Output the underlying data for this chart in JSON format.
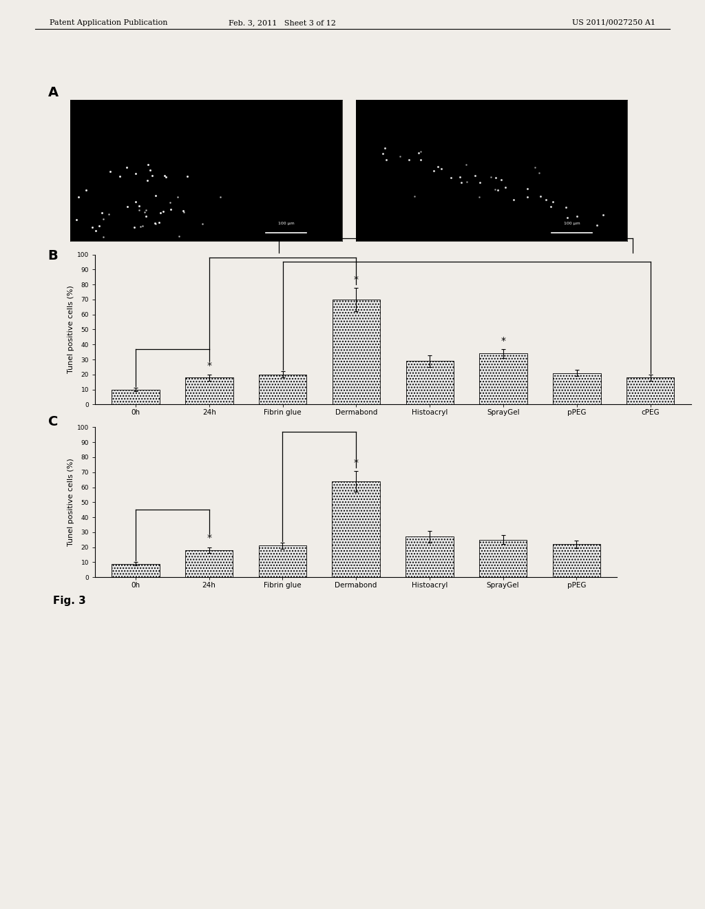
{
  "panel_b": {
    "categories": [
      "0h",
      "24h",
      "Fibrin glue",
      "Dermabond",
      "Histoacryl",
      "SprayGel",
      "pPEG",
      "cPEG"
    ],
    "values": [
      10,
      18,
      20,
      70,
      29,
      34,
      21,
      18
    ],
    "errors": [
      1.0,
      2.0,
      2.0,
      8.0,
      4.0,
      3.0,
      2.0,
      2.0
    ],
    "ylabel": "Tunel positive cells (%)",
    "ylim": [
      0,
      100
    ],
    "yticks": [
      0,
      10,
      20,
      30,
      40,
      50,
      60,
      70,
      80,
      90,
      100
    ],
    "star_indices": [
      1,
      3,
      5
    ],
    "bar_color": "#e8e8e8"
  },
  "panel_c": {
    "categories": [
      "0h",
      "24h",
      "Fibrin glue",
      "Dermabond",
      "Histoacryl",
      "SprayGel",
      "pPEG"
    ],
    "values": [
      9,
      18,
      21,
      64,
      27,
      25,
      22
    ],
    "errors": [
      1.0,
      2.0,
      2.0,
      7.0,
      4.0,
      3.0,
      2.5
    ],
    "ylabel": "Tunel positive cells (%)",
    "ylim": [
      0,
      100
    ],
    "yticks": [
      0,
      10,
      20,
      30,
      40,
      50,
      60,
      70,
      80,
      90,
      100
    ],
    "star_indices": [
      1,
      3
    ],
    "bar_color": "#e8e8e8"
  },
  "page_header_left": "Patent Application Publication",
  "page_header_mid": "Feb. 3, 2011   Sheet 3 of 12",
  "page_header_right": "US 2011/0027250 A1",
  "fig_label": "Fig. 3",
  "panel_a_label": "A",
  "panel_b_label": "B",
  "panel_c_label": "C",
  "background_color": "#f0ede8"
}
